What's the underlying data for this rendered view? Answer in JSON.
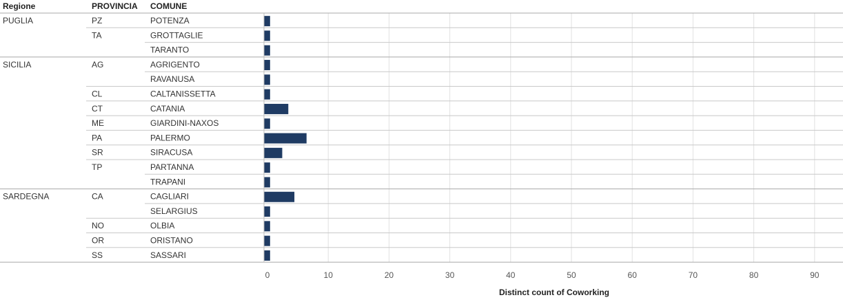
{
  "chart_data": {
    "type": "bar",
    "orientation": "horizontal",
    "headers": {
      "regione": "Regione",
      "provincia": "PROVINCIA",
      "comune": "COMUNE"
    },
    "groups": [
      {
        "regione": "PUGLIA",
        "rows": [
          {
            "provincia": "PZ",
            "comune": "POTENZA",
            "value": 1
          },
          {
            "provincia": "TA",
            "comune": "GROTTAGLIE",
            "value": 1
          },
          {
            "provincia": "",
            "comune": "TARANTO",
            "value": 1
          }
        ]
      },
      {
        "regione": "SICILIA",
        "rows": [
          {
            "provincia": "AG",
            "comune": "AGRIGENTO",
            "value": 1
          },
          {
            "provincia": "",
            "comune": "RAVANUSA",
            "value": 1
          },
          {
            "provincia": "CL",
            "comune": "CALTANISSETTA",
            "value": 1
          },
          {
            "provincia": "CT",
            "comune": "CATANIA",
            "value": 4
          },
          {
            "provincia": "ME",
            "comune": "GIARDINI-NAXOS",
            "value": 1
          },
          {
            "provincia": "PA",
            "comune": "PALERMO",
            "value": 7
          },
          {
            "provincia": "SR",
            "comune": "SIRACUSA",
            "value": 3
          },
          {
            "provincia": "TP",
            "comune": "PARTANNA",
            "value": 1
          },
          {
            "provincia": "",
            "comune": "TRAPANI",
            "value": 1
          }
        ]
      },
      {
        "regione": "SARDEGNA",
        "rows": [
          {
            "provincia": "CA",
            "comune": "CAGLIARI",
            "value": 5
          },
          {
            "provincia": "",
            "comune": "SELARGIUS",
            "value": 1
          },
          {
            "provincia": "NO",
            "comune": "OLBIA",
            "value": 1
          },
          {
            "provincia": "OR",
            "comune": "ORISTANO",
            "value": 1
          },
          {
            "provincia": "SS",
            "comune": "SASSARI",
            "value": 1
          }
        ]
      }
    ],
    "xlabel": "Distinct count of Coworking",
    "xticks": [
      0,
      10,
      20,
      30,
      40,
      50,
      60,
      70,
      80,
      90
    ],
    "xlim": [
      0,
      95
    ],
    "grid": true,
    "bar_color": "#1f3b63",
    "grid_color": "#e2e2e2",
    "divider_color": "#c8c8c8"
  }
}
